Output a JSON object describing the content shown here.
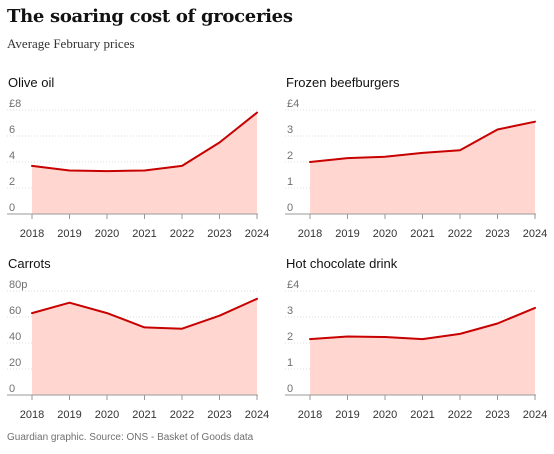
{
  "header": {
    "title": "The soaring cost of groceries",
    "subtitle": "Average February prices"
  },
  "footer": {
    "source": "Guardian graphic. Source: ONS - Basket of Goods data"
  },
  "colors": {
    "line": "#c70000",
    "area": "#ffd6d0",
    "grid": "#dcdcdc",
    "baseline": "#999999"
  },
  "chart_data": [
    {
      "type": "area",
      "title": "Olive oil",
      "x": [
        "2018",
        "2019",
        "2020",
        "2021",
        "2022",
        "2023",
        "2024"
      ],
      "values": [
        3.7,
        3.35,
        3.3,
        3.35,
        3.7,
        5.5,
        7.8
      ],
      "ylim": [
        0,
        8
      ],
      "yticks": [
        0,
        2,
        4,
        6,
        8
      ],
      "ytick_labels": [
        "0",
        "2",
        "4",
        "6",
        "£8"
      ]
    },
    {
      "type": "area",
      "title": "Frozen beefburgers",
      "x": [
        "2018",
        "2019",
        "2020",
        "2021",
        "2022",
        "2023",
        "2024"
      ],
      "values": [
        2.0,
        2.15,
        2.2,
        2.35,
        2.45,
        3.25,
        3.55
      ],
      "ylim": [
        0,
        4
      ],
      "yticks": [
        0,
        1,
        2,
        3,
        4
      ],
      "ytick_labels": [
        "0",
        "1",
        "2",
        "3",
        "£4"
      ]
    },
    {
      "type": "area",
      "title": "Carrots",
      "x": [
        "2018",
        "2019",
        "2020",
        "2021",
        "2022",
        "2023",
        "2024"
      ],
      "values": [
        63,
        71,
        63,
        52,
        51,
        61,
        74
      ],
      "ylim": [
        0,
        80
      ],
      "yticks": [
        0,
        20,
        40,
        60,
        80
      ],
      "ytick_labels": [
        "0",
        "20",
        "40",
        "60",
        "80p"
      ]
    },
    {
      "type": "area",
      "title": "Hot chocolate drink",
      "x": [
        "2018",
        "2019",
        "2020",
        "2021",
        "2022",
        "2023",
        "2024"
      ],
      "values": [
        2.15,
        2.25,
        2.23,
        2.15,
        2.35,
        2.75,
        3.35
      ],
      "ylim": [
        0,
        4
      ],
      "yticks": [
        0,
        1,
        2,
        3,
        4
      ],
      "ytick_labels": [
        "0",
        "1",
        "2",
        "3",
        "£4"
      ]
    }
  ]
}
